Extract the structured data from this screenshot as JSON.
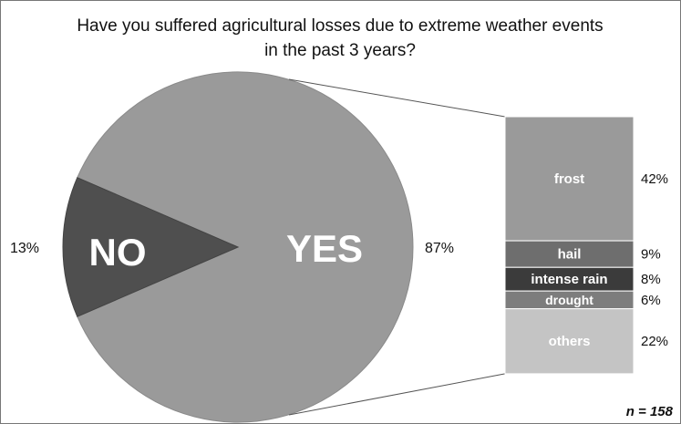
{
  "chart_data": {
    "type": "pie",
    "title_lines": [
      "Have you suffered agricultural losses due to extreme weather events",
      "in the past 3 years?"
    ],
    "slices": [
      {
        "label": "YES",
        "value": 87,
        "value_label": "87%",
        "color": "#9a9a9a"
      },
      {
        "label": "NO",
        "value": 13,
        "value_label": "13%",
        "color": "#4f4f4f"
      }
    ],
    "breakdown": {
      "of": "YES",
      "type": "stacked-bar",
      "segments": [
        {
          "label": "frost",
          "value": 42,
          "value_label": "42%",
          "color": "#9a9a9a"
        },
        {
          "label": "hail",
          "value": 9,
          "value_label": "9%",
          "color": "#6e6e6e"
        },
        {
          "label": "intense rain",
          "value": 8,
          "value_label": "8%",
          "color": "#3b3b3b"
        },
        {
          "label": "drought",
          "value": 6,
          "value_label": "6%",
          "color": "#7d7d7d"
        },
        {
          "label": "others",
          "value": 22,
          "value_label": "22%",
          "color": "#c4c4c4"
        }
      ]
    },
    "note": "n = 158"
  }
}
